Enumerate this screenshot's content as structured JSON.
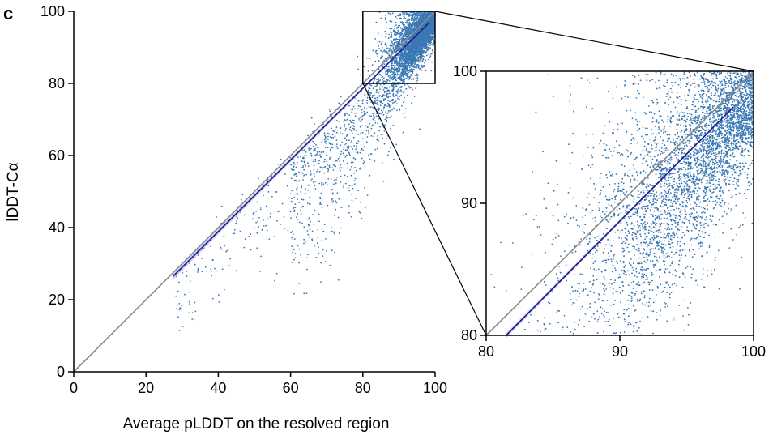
{
  "panel_label": "c",
  "colors": {
    "points": "#3a78b5",
    "fit_line": "#1a1a8c",
    "fit_band": "#b9bde8",
    "diagonal": "#8a8a8a",
    "axes": "#000000"
  },
  "chart_data": [
    {
      "id": "main",
      "type": "scatter",
      "xlabel": "Average pLDDT on the resolved region",
      "ylabel": "lDDT-Cα",
      "xlim": [
        0,
        100
      ],
      "ylim": [
        0,
        100
      ],
      "xticks": [
        "0",
        "20",
        "40",
        "60",
        "80",
        "100"
      ],
      "yticks": [
        "0",
        "20",
        "40",
        "60",
        "80",
        "100"
      ],
      "grid": false,
      "reference_line": {
        "x": [
          0,
          100
        ],
        "y": [
          0,
          100
        ]
      },
      "fit_line": {
        "x": [
          27.5,
          98.5
        ],
        "y": [
          26.5,
          97
        ]
      },
      "zoom_region": {
        "x": [
          80,
          100
        ],
        "y": [
          80,
          100
        ]
      },
      "point_distribution": "dense cluster at pLDDT 80–100 (lDDT-Cα 75–100), sparse spread toward lower values"
    },
    {
      "id": "inset",
      "type": "scatter",
      "xlabel": "",
      "ylabel": "",
      "xlim": [
        80,
        100
      ],
      "ylim": [
        80,
        100
      ],
      "xticks": [
        "80",
        "90",
        "100"
      ],
      "yticks": [
        "80",
        "90",
        "100"
      ],
      "grid": false,
      "reference_line": {
        "x": [
          80,
          100
        ],
        "y": [
          80,
          100
        ]
      },
      "fit_line": {
        "x": [
          81.5,
          98.5
        ],
        "y": [
          80,
          97.3
        ]
      }
    }
  ]
}
